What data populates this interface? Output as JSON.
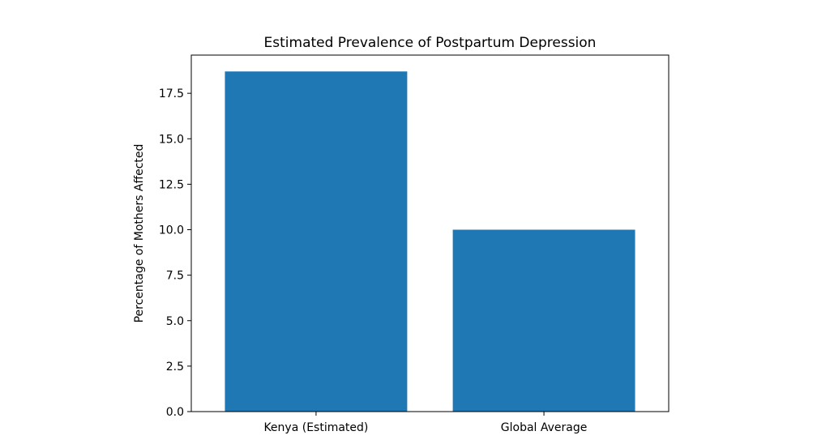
{
  "chart_data": {
    "type": "bar",
    "title": "Estimated Prevalence of Postpartum Depression",
    "xlabel": "",
    "ylabel": "Percentage of Mothers Affected",
    "categories": [
      "Kenya (Estimated)",
      "Global Average"
    ],
    "values": [
      18.7,
      10.0
    ],
    "ylim": [
      0,
      19.6
    ],
    "yticks": [
      0.0,
      2.5,
      5.0,
      7.5,
      10.0,
      12.5,
      15.0,
      17.5
    ],
    "ytick_labels": [
      "0.0",
      "2.5",
      "5.0",
      "7.5",
      "10.0",
      "12.5",
      "15.0",
      "17.5"
    ],
    "bar_color": "#1f77b4",
    "grid": false,
    "legend": "none"
  }
}
